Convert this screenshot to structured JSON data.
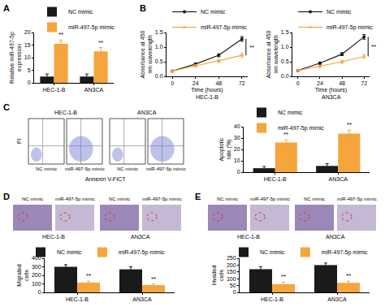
{
  "chart_data": [
    {
      "panel": "A",
      "type": "bar",
      "categories": [
        "HEC-1-B",
        "AN3CA"
      ],
      "series": [
        {
          "name": "NC mimic",
          "color": "#1a1a1a",
          "values": [
            2.5,
            2.5
          ],
          "errors": [
            1,
            1
          ]
        },
        {
          "name": "miR-497-5p mimic",
          "color": "#f5a53c",
          "values": [
            15.5,
            12.5
          ],
          "errors": [
            1.5,
            1.5
          ],
          "significance": [
            "**",
            "**"
          ]
        }
      ],
      "y_label": "Relative miR-497-5p expression",
      "ylim": [
        0,
        20
      ],
      "yticks": [
        0,
        5,
        10,
        15,
        20
      ]
    },
    {
      "panel": "B",
      "type": "line",
      "title": "HEC-1-B",
      "x": [
        0,
        24,
        48,
        72
      ],
      "x_label": "Time (hours)",
      "y_label": "Absorbance at 450 nm wavelength",
      "xlim": [
        -6,
        78
      ],
      "xticks": [
        0,
        24,
        48,
        72
      ],
      "ylim": [
        0,
        1.5
      ],
      "yticks": [
        {
          "value": 0,
          "label": "0.0"
        },
        {
          "value": 0.5,
          "label": "0.5"
        },
        {
          "value": 1,
          "label": "1.0"
        },
        {
          "value": 1.5,
          "label": "1.5"
        }
      ],
      "series": [
        {
          "name": "NC mimic",
          "color": "#1a1a1a",
          "marker": "circle",
          "values": [
            0.18,
            0.42,
            0.72,
            1.28
          ],
          "errors": [
            0.03,
            0.04,
            0.05,
            0.08
          ]
        },
        {
          "name": "miR-497-5p mimic",
          "color": "#f5a53c",
          "marker": "triangle-up",
          "values": [
            0.18,
            0.36,
            0.52,
            0.72
          ],
          "errors": [
            0.03,
            0.04,
            0.05,
            0.06
          ]
        }
      ],
      "significance": {
        "x": 72,
        "text": "**"
      }
    },
    {
      "type": "line",
      "title": "AN3CA",
      "x": [
        0,
        24,
        48,
        72
      ],
      "x_label": "Time (hours)",
      "y_label": "Absorbance at 450 nm wavelength",
      "xlim": [
        -6,
        78
      ],
      "xticks": [
        0,
        24,
        48,
        72
      ],
      "ylim": [
        0,
        1.5
      ],
      "yticks": [
        {
          "value": 0,
          "label": "0.0"
        },
        {
          "value": 0.5,
          "label": "0.5"
        },
        {
          "value": 1,
          "label": "1.0"
        },
        {
          "value": 1.5,
          "label": "1.5"
        }
      ],
      "series": [
        {
          "name": "NC mimic",
          "color": "#1a1a1a",
          "marker": "circle",
          "values": [
            0.2,
            0.45,
            0.76,
            1.35
          ],
          "errors": [
            0.03,
            0.04,
            0.05,
            0.08
          ]
        },
        {
          "name": "miR-497-5p mimic",
          "color": "#f5a53c",
          "marker": "triangle-up",
          "values": [
            0.2,
            0.34,
            0.5,
            0.68
          ],
          "errors": [
            0.03,
            0.04,
            0.05,
            0.06
          ]
        }
      ],
      "significance": {
        "x": 72,
        "text": "**"
      }
    },
    {
      "type": "bar",
      "categories": [
        "HEC-1-B",
        "AN3CA"
      ],
      "series": [
        {
          "name": "NC mimic",
          "color": "#1a1a1a",
          "values": [
            3.5,
            5.5
          ],
          "errors": [
            1.5,
            2
          ]
        },
        {
          "name": "miR-497-5p mimic",
          "color": "#f5a53c",
          "values": [
            26,
            34
          ],
          "errors": [
            2.5,
            3
          ],
          "significance": [
            "**",
            "**"
          ]
        }
      ],
      "y_label": "Apoptotic rate (%)",
      "ylim": [
        0,
        40
      ],
      "yticks": [
        0,
        10,
        20,
        30,
        40
      ]
    },
    {
      "type": "bar",
      "categories": [
        "HEC-1-B",
        "AN3CA"
      ],
      "series": [
        {
          "name": "NC mimic",
          "color": "#1a1a1a",
          "values": [
            300,
            270
          ],
          "errors": [
            25,
            30
          ]
        },
        {
          "name": "miR-497-5p mimic",
          "color": "#f5a53c",
          "values": [
            115,
            85
          ],
          "errors": [
            15,
            15
          ],
          "significance": [
            "**",
            "**"
          ]
        }
      ],
      "y_label": "Migrated cells",
      "ylim": [
        0,
        400
      ],
      "yticks": [
        0,
        100,
        200,
        300,
        400
      ]
    },
    {
      "type": "bar",
      "categories": [
        "HEC-1-B",
        "AN3CA"
      ],
      "series": [
        {
          "name": "NC mimic",
          "color": "#1a1a1a",
          "values": [
            170,
            200
          ],
          "errors": [
            18,
            15
          ]
        },
        {
          "name": "miR-497-5p mimic",
          "color": "#f5a53c",
          "values": [
            60,
            70
          ],
          "errors": [
            15,
            12
          ],
          "significance": [
            "**",
            "**"
          ]
        }
      ],
      "y_label": "Invaded cells",
      "ylim": [
        0,
        250
      ],
      "yticks": [
        0,
        50,
        100,
        150,
        200,
        250
      ]
    }
  ],
  "flow_cytometry": {
    "panel": "C",
    "x_label": "Annexin V-FICT",
    "y_label": "PI",
    "cell_lines": [
      "HEC-1-B",
      "AN3CA"
    ],
    "conditions": [
      "NC mimic",
      "miR-497-5p mimic"
    ]
  },
  "micrographs": [
    {
      "panel": "D",
      "cell_lines": [
        "HEC-1-B",
        "AN3CA"
      ],
      "conditions": [
        "NC mimic",
        "miR-497-5p mimic"
      ]
    },
    {
      "panel": "E",
      "cell_lines": [
        "HEC-1-B",
        "AN3CA"
      ],
      "conditions": [
        "NC mimic",
        "miR-497-5p mimic"
      ]
    }
  ]
}
